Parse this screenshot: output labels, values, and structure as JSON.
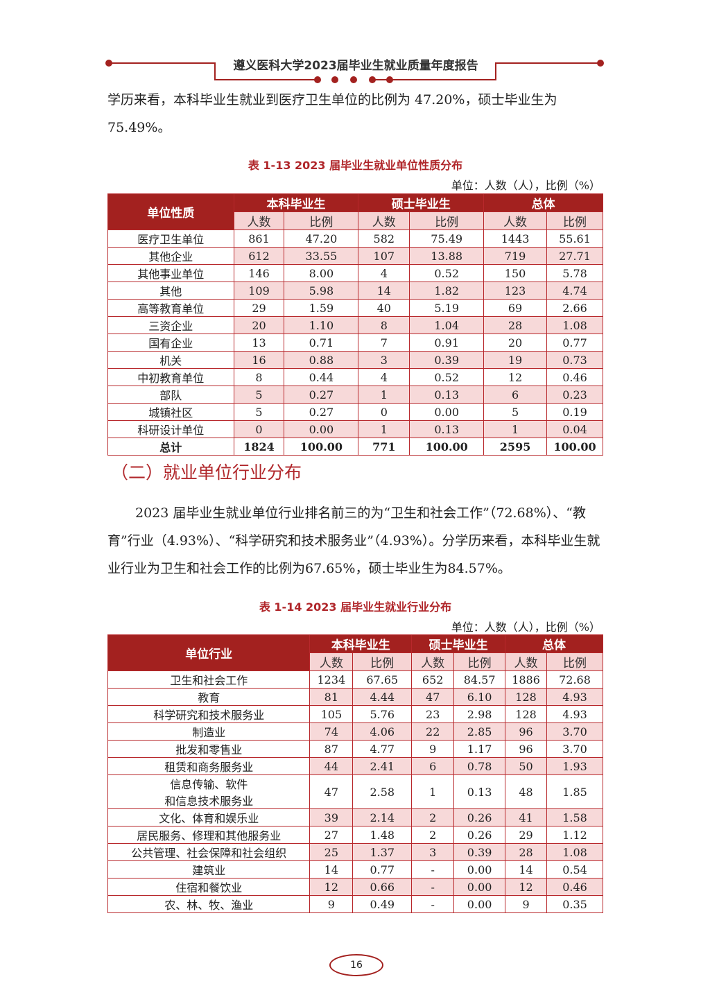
{
  "header": {
    "title": "遵义医科大学2023届毕业生就业质量年度报告",
    "accent": "#a3211f"
  },
  "intro": "学历来看，本科毕业生就业到医疗卫生单位的比例为 47.20%，硕士毕业生为75.49%。",
  "table1": {
    "caption": "表 1-13 2023 届毕业生就业单位性质分布",
    "unit": "单位：人数（人），比例（%）",
    "col0": "单位性质",
    "groups": [
      "本科毕业生",
      "硕士毕业生",
      "总体"
    ],
    "sub": [
      "人数",
      "比例"
    ],
    "rows": [
      [
        "医疗卫生单位",
        "861",
        "47.20",
        "582",
        "75.49",
        "1443",
        "55.61"
      ],
      [
        "其他企业",
        "612",
        "33.55",
        "107",
        "13.88",
        "719",
        "27.71"
      ],
      [
        "其他事业单位",
        "146",
        "8.00",
        "4",
        "0.52",
        "150",
        "5.78"
      ],
      [
        "其他",
        "109",
        "5.98",
        "14",
        "1.82",
        "123",
        "4.74"
      ],
      [
        "高等教育单位",
        "29",
        "1.59",
        "40",
        "5.19",
        "69",
        "2.66"
      ],
      [
        "三资企业",
        "20",
        "1.10",
        "8",
        "1.04",
        "28",
        "1.08"
      ],
      [
        "国有企业",
        "13",
        "0.71",
        "7",
        "0.91",
        "20",
        "0.77"
      ],
      [
        "机关",
        "16",
        "0.88",
        "3",
        "0.39",
        "19",
        "0.73"
      ],
      [
        "中初教育单位",
        "8",
        "0.44",
        "4",
        "0.52",
        "12",
        "0.46"
      ],
      [
        "部队",
        "5",
        "0.27",
        "1",
        "0.13",
        "6",
        "0.23"
      ],
      [
        "城镇社区",
        "5",
        "0.27",
        "0",
        "0.00",
        "5",
        "0.19"
      ],
      [
        "科研设计单位",
        "0",
        "0.00",
        "1",
        "0.13",
        "1",
        "0.04"
      ]
    ],
    "total": [
      "总计",
      "1824",
      "100.00",
      "771",
      "100.00",
      "2595",
      "100.00"
    ]
  },
  "section_title": "（二）就业单位行业分布",
  "para2": "2023 届毕业生就业单位行业排名前三的为“卫生和社会工作”（72.68%）、“教育”行业（4.93%）、“科学研究和技术服务业”（4.93%）。分学历来看，本科毕业生就业行业为卫生和社会工作的比例为67.65%，硕士毕业生为84.57%。",
  "table2": {
    "caption": "表 1-14 2023 届毕业生就业行业分布",
    "unit": "单位：人数（人），比例（%）",
    "col0": "单位行业",
    "groups": [
      "本科毕业生",
      "硕士毕业生",
      "总体"
    ],
    "sub": [
      "人数",
      "比例"
    ],
    "rows": [
      [
        "卫生和社会工作",
        "1234",
        "67.65",
        "652",
        "84.57",
        "1886",
        "72.68"
      ],
      [
        "教育",
        "81",
        "4.44",
        "47",
        "6.10",
        "128",
        "4.93"
      ],
      [
        "科学研究和技术服务业",
        "105",
        "5.76",
        "23",
        "2.98",
        "128",
        "4.93"
      ],
      [
        "制造业",
        "74",
        "4.06",
        "22",
        "2.85",
        "96",
        "3.70"
      ],
      [
        "批发和零售业",
        "87",
        "4.77",
        "9",
        "1.17",
        "96",
        "3.70"
      ],
      [
        "租赁和商务服务业",
        "44",
        "2.41",
        "6",
        "0.78",
        "50",
        "1.93"
      ],
      [
        "信息传输、软件\n和信息技术服务业",
        "47",
        "2.58",
        "1",
        "0.13",
        "48",
        "1.85"
      ],
      [
        "文化、体育和娱乐业",
        "39",
        "2.14",
        "2",
        "0.26",
        "41",
        "1.58"
      ],
      [
        "居民服务、修理和其他服务业",
        "27",
        "1.48",
        "2",
        "0.26",
        "29",
        "1.12"
      ],
      [
        "公共管理、社会保障和社会组织",
        "25",
        "1.37",
        "3",
        "0.39",
        "28",
        "1.08"
      ],
      [
        "建筑业",
        "14",
        "0.77",
        "-",
        "0.00",
        "14",
        "0.54"
      ],
      [
        "住宿和餐饮业",
        "12",
        "0.66",
        "-",
        "0.00",
        "12",
        "0.46"
      ],
      [
        "农、林、牧、渔业",
        "9",
        "0.49",
        "-",
        "0.00",
        "9",
        "0.35"
      ]
    ]
  },
  "page_number": "16"
}
